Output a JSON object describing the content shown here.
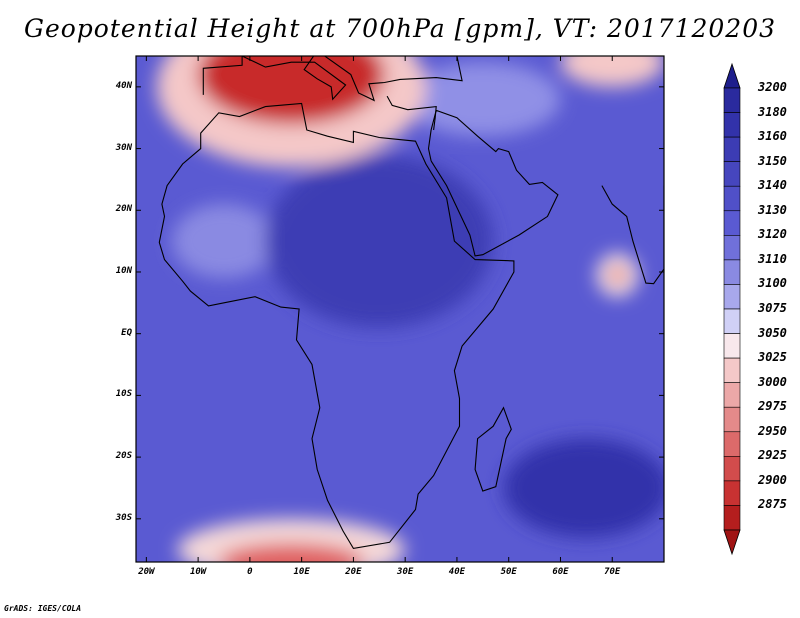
{
  "title": "Geopotential Height at 700hPa [gpm], VT: 2017120203",
  "credit": "GrADS: IGES/COLA",
  "map": {
    "lon_range": [
      -22,
      80
    ],
    "lat_range": [
      -37,
      45
    ],
    "lat_ticks": [
      {
        "value": 40,
        "label": "40N"
      },
      {
        "value": 30,
        "label": "30N"
      },
      {
        "value": 20,
        "label": "20N"
      },
      {
        "value": 10,
        "label": "10N"
      },
      {
        "value": 0,
        "label": "EQ"
      },
      {
        "value": -10,
        "label": "10S"
      },
      {
        "value": -20,
        "label": "20S"
      },
      {
        "value": -30,
        "label": "30S"
      }
    ],
    "lon_ticks": [
      {
        "value": -20,
        "label": "20W"
      },
      {
        "value": -10,
        "label": "10W"
      },
      {
        "value": 0,
        "label": "0"
      },
      {
        "value": 10,
        "label": "10E"
      },
      {
        "value": 20,
        "label": "20E"
      },
      {
        "value": 30,
        "label": "30E"
      },
      {
        "value": 40,
        "label": "40E"
      },
      {
        "value": 50,
        "label": "50E"
      },
      {
        "value": 60,
        "label": "60E"
      },
      {
        "value": 70,
        "label": "70E"
      }
    ],
    "background_color": "#5a5ad2",
    "field_features": [
      {
        "kind": "trough",
        "lon": 8,
        "lat": 42,
        "rx": 18,
        "ry": 8,
        "color": "#c82a2a"
      },
      {
        "kind": "trough-halo",
        "lon": 8,
        "lat": 40,
        "rx": 26,
        "ry": 13,
        "color": "#f4c8c8"
      },
      {
        "kind": "trough",
        "lon": 8,
        "lat": -37,
        "rx": 14,
        "ry": 3,
        "color": "#e06060"
      },
      {
        "kind": "trough-halo",
        "lon": 8,
        "lat": -35,
        "rx": 22,
        "ry": 5,
        "color": "#f4d8d8"
      },
      {
        "kind": "trough",
        "lon": 71,
        "lat": 9.5,
        "rx": 1.5,
        "ry": 1.2,
        "color": "#d42020"
      },
      {
        "kind": "trough-halo",
        "lon": 71,
        "lat": 9.5,
        "rx": 4,
        "ry": 3.5,
        "color": "#f8e0e0"
      },
      {
        "kind": "trough-halo",
        "lon": 70,
        "lat": 44,
        "rx": 10,
        "ry": 4,
        "color": "#f4c8c8"
      },
      {
        "kind": "ridge",
        "lon": 25,
        "lat": 15,
        "rx": 22,
        "ry": 14,
        "color": "#3c3cb4"
      },
      {
        "kind": "ridge",
        "lon": 65,
        "lat": -25,
        "rx": 16,
        "ry": 8,
        "color": "#3232aa"
      },
      {
        "kind": "high",
        "lon": 45,
        "lat": 38,
        "rx": 15,
        "ry": 6,
        "color": "#9090e6"
      },
      {
        "kind": "high",
        "lon": -5,
        "lat": 15,
        "rx": 10,
        "ry": 6,
        "color": "#8a8ae2"
      }
    ],
    "africa_outline": [
      [
        -17,
        21
      ],
      [
        -16,
        24
      ],
      [
        -13,
        27.5
      ],
      [
        -9.5,
        30
      ],
      [
        -9.5,
        32.5
      ],
      [
        -6,
        35.8
      ],
      [
        -2,
        35.2
      ],
      [
        3,
        36.8
      ],
      [
        10,
        37.3
      ],
      [
        11,
        33
      ],
      [
        15,
        32
      ],
      [
        20,
        31
      ],
      [
        20,
        32.8
      ],
      [
        25,
        31.8
      ],
      [
        32,
        31.2
      ],
      [
        34,
        27.5
      ],
      [
        38,
        22
      ],
      [
        39.5,
        15
      ],
      [
        43.5,
        12
      ],
      [
        51,
        11.8
      ],
      [
        51,
        10
      ],
      [
        47,
        4
      ],
      [
        41,
        -2
      ],
      [
        39.5,
        -6
      ],
      [
        40.5,
        -10.5
      ],
      [
        40.5,
        -15
      ],
      [
        35.5,
        -23
      ],
      [
        32.5,
        -26
      ],
      [
        32,
        -28.5
      ],
      [
        27,
        -33.8
      ],
      [
        20,
        -34.8
      ],
      [
        18,
        -32
      ],
      [
        15,
        -27
      ],
      [
        13,
        -22
      ],
      [
        12,
        -17
      ],
      [
        13.5,
        -12
      ],
      [
        12,
        -5
      ],
      [
        9,
        -1
      ],
      [
        9.5,
        4
      ],
      [
        6,
        4.3
      ],
      [
        1,
        6
      ],
      [
        -5,
        5
      ],
      [
        -8,
        4.5
      ],
      [
        -11.5,
        6.9
      ],
      [
        -13,
        8.5
      ],
      [
        -16.5,
        12
      ],
      [
        -17.5,
        14.8
      ],
      [
        -16.5,
        19
      ]
    ],
    "madagascar_outline": [
      [
        49,
        -12
      ],
      [
        50.5,
        -15.5
      ],
      [
        49.5,
        -17
      ],
      [
        47.5,
        -24.8
      ],
      [
        45,
        -25.5
      ],
      [
        43.5,
        -22
      ],
      [
        44,
        -17
      ],
      [
        47,
        -15
      ],
      [
        49,
        -12
      ]
    ],
    "arabia_outline": [
      [
        35,
        28
      ],
      [
        38,
        24
      ],
      [
        42.5,
        16
      ],
      [
        43.5,
        12.6
      ],
      [
        45,
        12.8
      ],
      [
        52,
        16
      ],
      [
        57.5,
        19
      ],
      [
        59.5,
        22.5
      ],
      [
        56.5,
        24.5
      ],
      [
        54,
        24.2
      ],
      [
        51.5,
        26.5
      ],
      [
        50,
        29.5
      ],
      [
        48,
        30
      ],
      [
        47.5,
        29.5
      ],
      [
        44,
        32
      ],
      [
        40,
        35
      ],
      [
        36,
        36.2
      ],
      [
        35,
        33
      ],
      [
        34.5,
        30
      ],
      [
        35,
        28
      ]
    ],
    "india_outline": [
      [
        68,
        24
      ],
      [
        70,
        21
      ],
      [
        72.8,
        19
      ],
      [
        74,
        15
      ],
      [
        76.5,
        8.2
      ],
      [
        78,
        8.1
      ],
      [
        80,
        10.5
      ],
      [
        80,
        15.5
      ],
      [
        80,
        24
      ]
    ],
    "europe_outline": [
      [
        -9,
        38.7
      ],
      [
        -9,
        43
      ],
      [
        -1.5,
        43.5
      ],
      [
        -1.5,
        45
      ],
      [
        3,
        43.2
      ],
      [
        8,
        44
      ],
      [
        12.5,
        44
      ],
      [
        18.5,
        40.3
      ],
      [
        16,
        38
      ],
      [
        15.7,
        40
      ],
      [
        13,
        41.3
      ],
      [
        10.5,
        42.8
      ],
      [
        12.3,
        45
      ],
      [
        13.6,
        45.5
      ],
      [
        19.5,
        42
      ],
      [
        21,
        39
      ],
      [
        24,
        37.8
      ],
      [
        23,
        40.5
      ],
      [
        26,
        40.7
      ],
      [
        29,
        41.2
      ],
      [
        36,
        41.5
      ],
      [
        41,
        41
      ],
      [
        40,
        45
      ]
    ],
    "turkey_south_outline": [
      [
        26.5,
        38.5
      ],
      [
        27.5,
        37
      ],
      [
        30.5,
        36.3
      ],
      [
        36,
        36.8
      ],
      [
        35.8,
        35
      ],
      [
        35.5,
        33
      ]
    ]
  },
  "colorbar": {
    "levels": [
      "3200",
      "3180",
      "3160",
      "3150",
      "3140",
      "3130",
      "3120",
      "3110",
      "3100",
      "3075",
      "3050",
      "3025",
      "3000",
      "2975",
      "2950",
      "2925",
      "2900",
      "2875"
    ],
    "colors": [
      "#2a2a9e",
      "#3232aa",
      "#3c3cb4",
      "#4646be",
      "#5050c8",
      "#5a5ad2",
      "#7070da",
      "#8a8ae2",
      "#a8a8ec",
      "#d0d0f6",
      "#f8e8ec",
      "#f4c8c8",
      "#eca8a8",
      "#e48a8a",
      "#dc6a6a",
      "#d24c4c",
      "#c83232",
      "#b41e1e"
    ],
    "top_arrow_color": "#1e1e8c",
    "bottom_arrow_color": "#a01414"
  }
}
